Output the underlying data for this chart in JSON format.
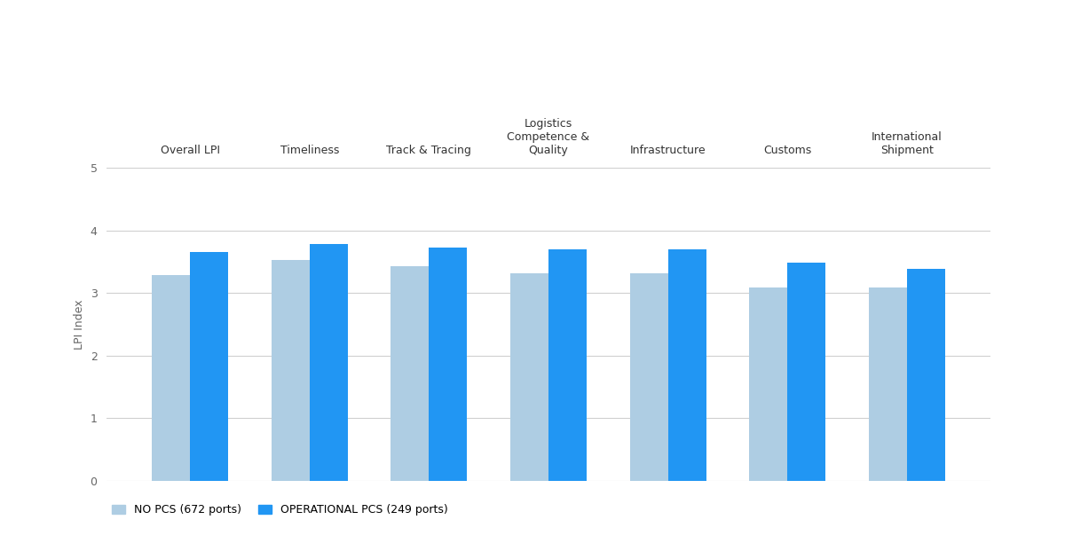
{
  "categories": [
    "Overall LPI",
    "Timeliness",
    "Track & Tracing",
    "Logistics\nCompetence &\nQuality",
    "Infrastructure",
    "Customs",
    "International\nShipment"
  ],
  "no_pcs_values": [
    3.28,
    3.52,
    3.42,
    3.32,
    3.32,
    3.08,
    3.08
  ],
  "operational_pcs_values": [
    3.65,
    3.78,
    3.73,
    3.7,
    3.7,
    3.48,
    3.38
  ],
  "no_pcs_color": "#aecde3",
  "operational_pcs_color": "#2196f3",
  "no_pcs_label": "NO PCS (672 ports)",
  "operational_pcs_label": "OPERATIONAL PCS (249 ports)",
  "ylabel": "LPI Index",
  "ylim": [
    0,
    5
  ],
  "yticks": [
    0,
    1,
    2,
    3,
    4,
    5
  ],
  "background_color": "#ffffff",
  "bar_width": 0.32,
  "axis_label_fontsize": 9,
  "legend_fontsize": 9,
  "tick_label_fontsize": 9
}
